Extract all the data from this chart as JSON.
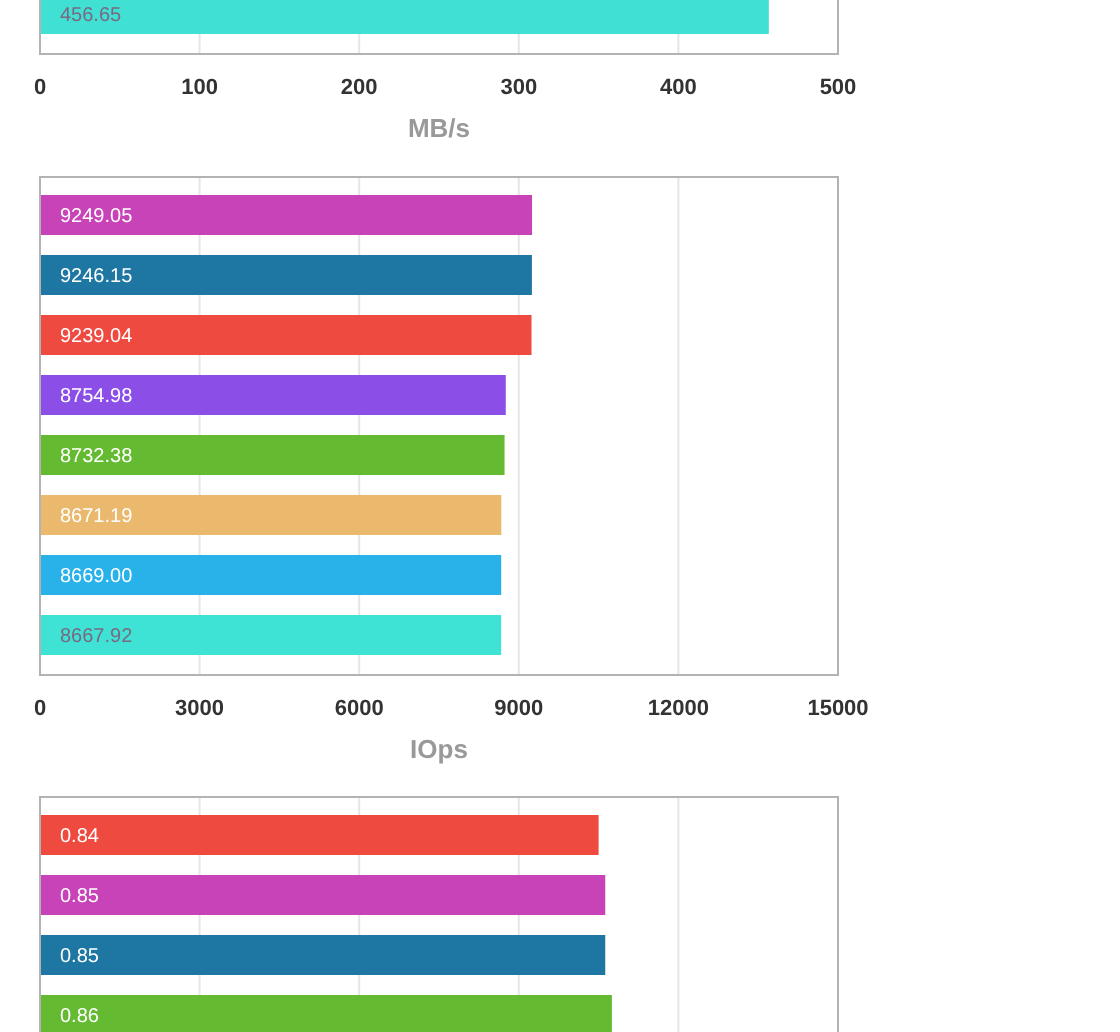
{
  "chart_data": [
    {
      "type": "bar",
      "orientation": "horizontal",
      "categories": [
        null
      ],
      "values": [
        456.65
      ],
      "value_labels": [
        "456.65"
      ],
      "colors": [
        "#40e0d5"
      ],
      "xlim": [
        0,
        500
      ],
      "xticks": [
        0,
        100,
        200,
        300,
        400,
        500
      ],
      "xlabel": "MB/s",
      "grid": "x"
    },
    {
      "type": "bar",
      "orientation": "horizontal",
      "categories": [
        null,
        null,
        null,
        null,
        null,
        null,
        null,
        null
      ],
      "values": [
        9249.05,
        9246.15,
        9239.04,
        8754.98,
        8732.38,
        8671.19,
        8669,
        8667.92
      ],
      "value_labels": [
        "9249.05",
        "9246.15",
        "9239.04",
        "8754.98",
        "8732.38",
        "8671.19",
        "8669.00",
        "8667.92"
      ],
      "colors": [
        "#c842b8",
        "#1e77a3",
        "#ef4a40",
        "#8b4fe8",
        "#64bb32",
        "#ebb96d",
        "#29b2ea",
        "#3ee3d6"
      ],
      "xlim": [
        0,
        15000
      ],
      "xticks": [
        0,
        3000,
        6000,
        9000,
        12000,
        15000
      ],
      "xlabel": "IOps",
      "grid": "x"
    },
    {
      "type": "bar",
      "orientation": "horizontal",
      "categories": [
        null,
        null,
        null,
        null
      ],
      "values": [
        0.84,
        0.85,
        0.85,
        0.86
      ],
      "value_labels": [
        "0.84",
        "0.85",
        "0.85",
        "0.86"
      ],
      "colors": [
        "#ef4a40",
        "#c842b8",
        "#1e77a3",
        "#64bb32"
      ],
      "xlim": [
        0,
        1.2
      ],
      "xticks": [
        {
          "value": 0,
          "label": null
        },
        {
          "value": 0.24,
          "label": null
        },
        {
          "value": 0.48,
          "label": null
        },
        {
          "value": 0.72,
          "label": null
        },
        {
          "value": 0.96,
          "label": null
        },
        {
          "value": 1.2,
          "label": null
        }
      ],
      "grid": "x"
    }
  ]
}
